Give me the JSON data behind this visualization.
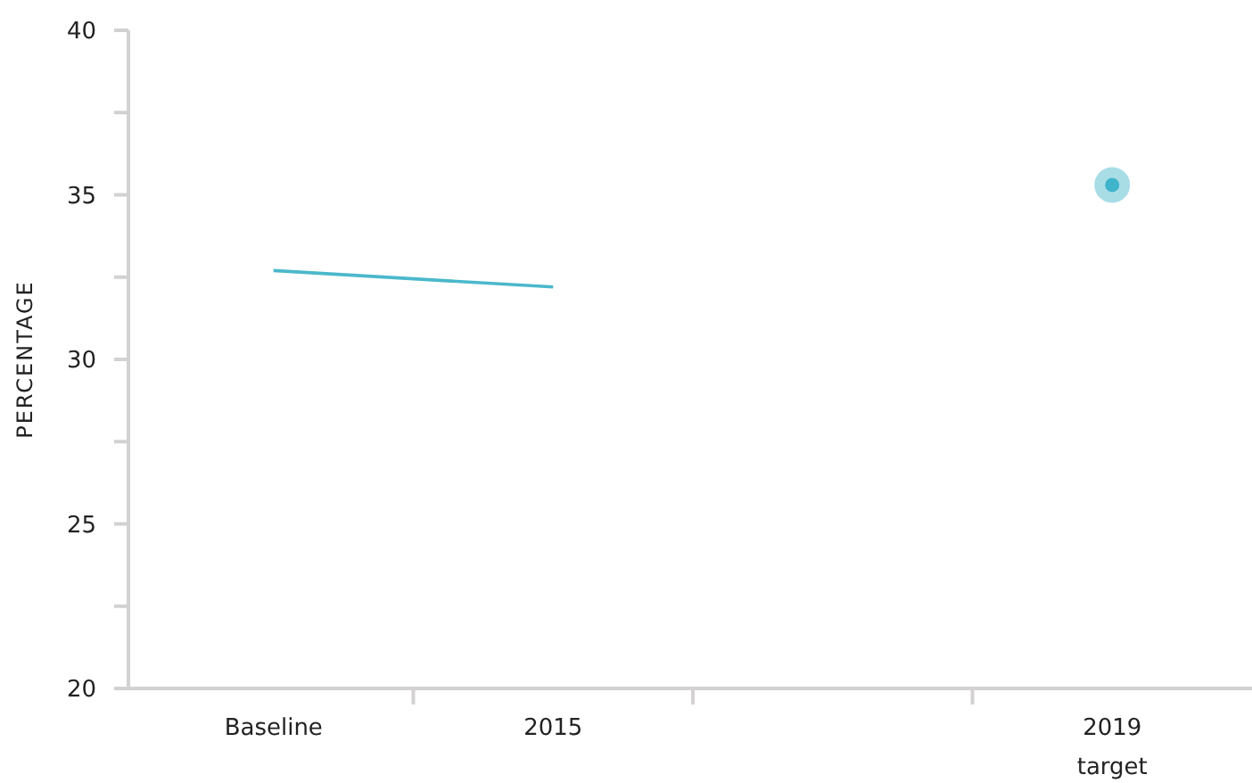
{
  "chart_data": {
    "type": "line",
    "ylabel": "PERCENTAGE",
    "categories": [
      "Baseline",
      "2015",
      null,
      "2019\ntarget"
    ],
    "ylim": [
      20,
      40
    ],
    "yticks": [
      20,
      {
        "value": 22.5,
        "label": null
      },
      25,
      {
        "value": 27.5,
        "label": null
      },
      30,
      {
        "value": 32.5,
        "label": null
      },
      35,
      {
        "value": 37.5,
        "label": null
      },
      40
    ],
    "grid": false,
    "series": [
      {
        "color": "#4bb8cc",
        "values": [
          32.7,
          32.2,
          null,
          null
        ],
        "marker": "none"
      },
      {
        "type": "scatter",
        "color": "#3fb4cb",
        "values": [
          null,
          null,
          null,
          35.3
        ],
        "marker": "circle"
      }
    ]
  }
}
